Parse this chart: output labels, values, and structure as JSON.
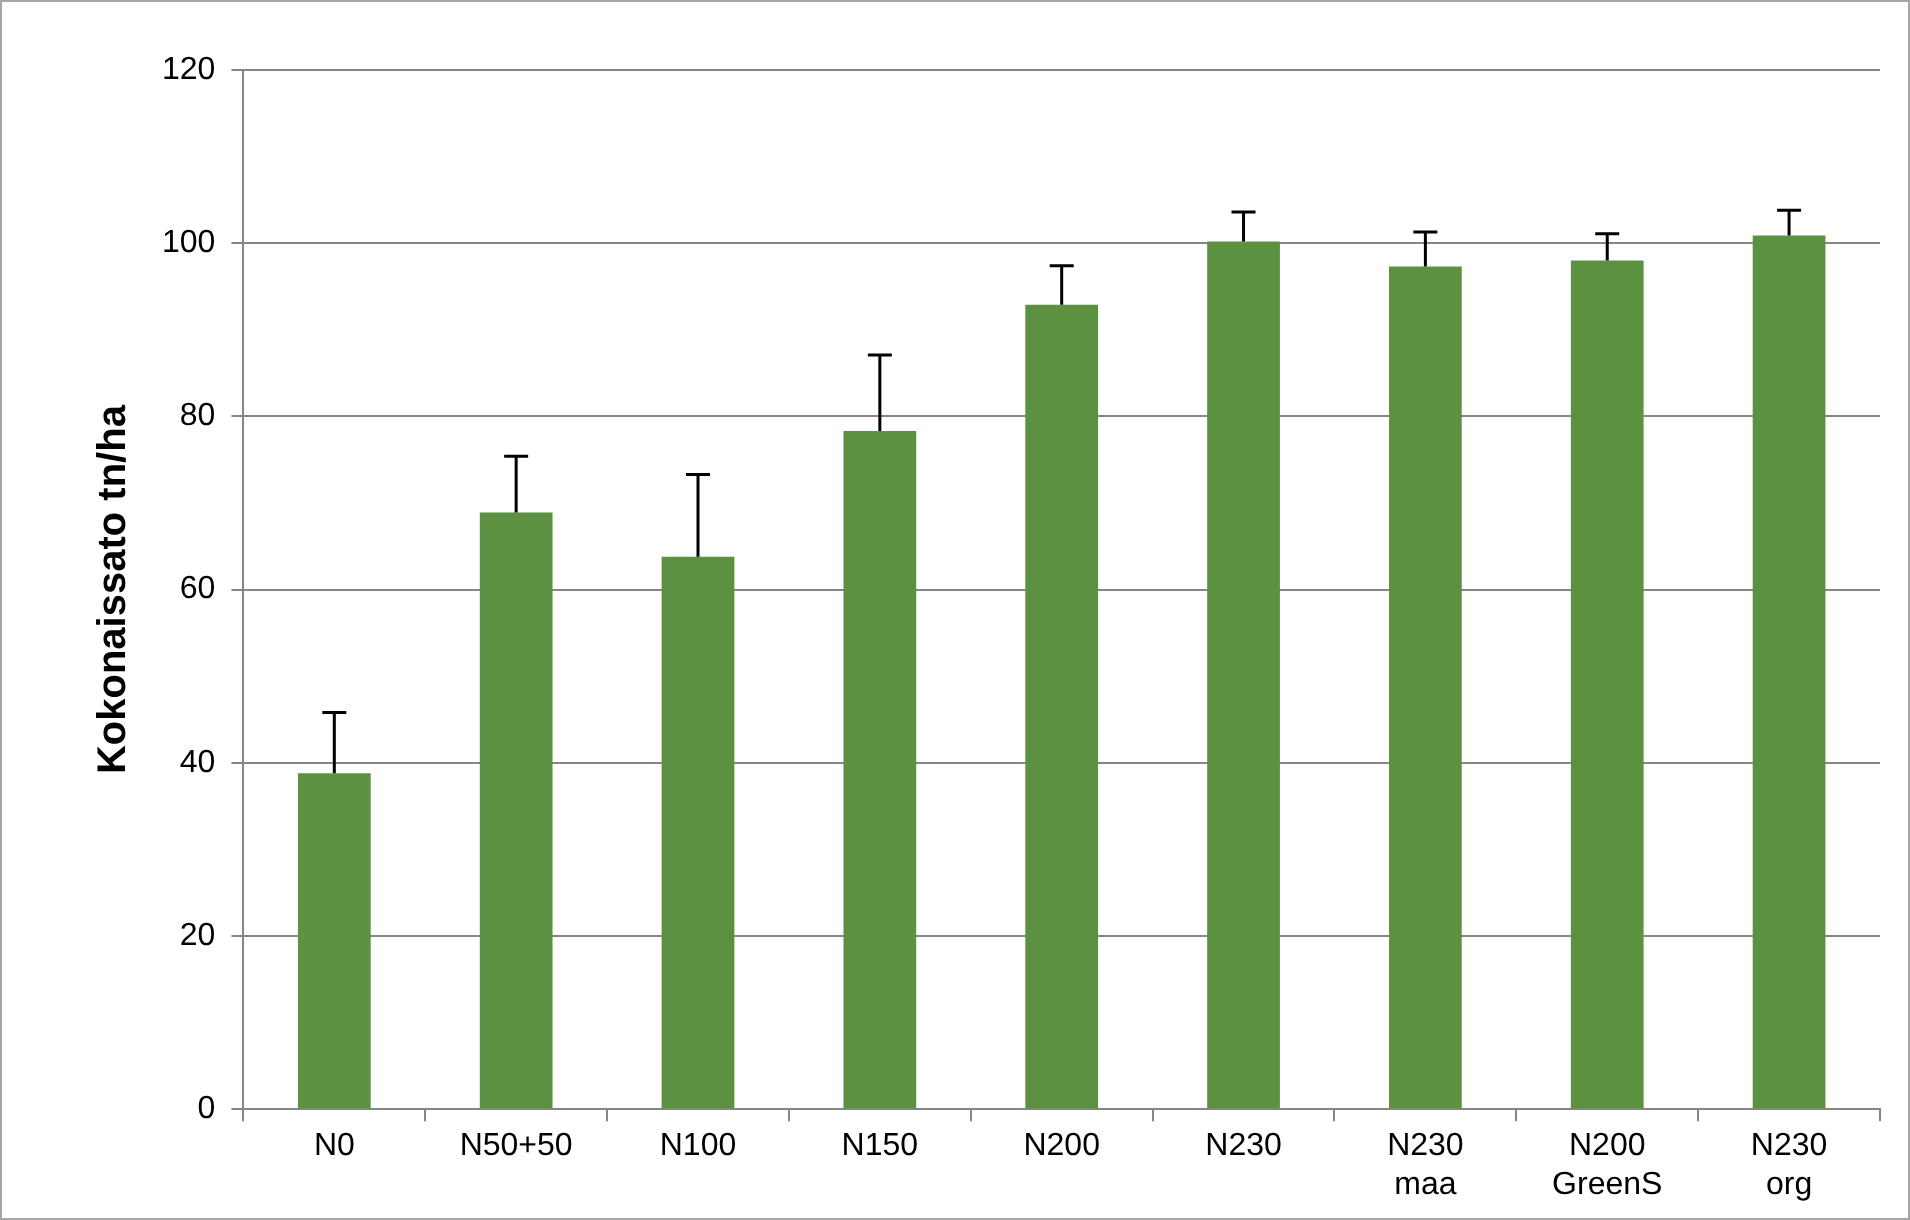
{
  "chart_data": {
    "type": "bar",
    "ylabel": "Kokonaissato tn/ha",
    "categories": [
      "N0",
      "N50+50",
      "N100",
      "N150",
      "N200",
      "N230",
      "N230 maa",
      "N200 GreenS",
      "N230 org"
    ],
    "values": [
      38.8,
      68.9,
      63.8,
      78.3,
      92.9,
      100.2,
      97.3,
      98.0,
      100.9
    ],
    "errors": [
      [
        38.8,
        45.8
      ],
      [
        68.9,
        75.4
      ],
      [
        63.8,
        73.3
      ],
      [
        78.3,
        87.1
      ],
      [
        92.9,
        97.4
      ],
      [
        100.2,
        103.6
      ],
      [
        97.3,
        101.3
      ],
      [
        98.0,
        101.1
      ],
      [
        100.9,
        103.8
      ]
    ],
    "color": "#5b9141",
    "ylim": [
      0,
      120
    ],
    "yticks": [
      0,
      20,
      40,
      60,
      80,
      100,
      120
    ],
    "grid": "y"
  }
}
